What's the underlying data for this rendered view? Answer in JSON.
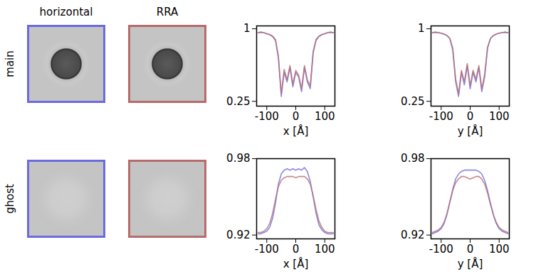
{
  "images": {
    "columns": [
      {
        "title": "horizontal",
        "color": "#6b6be0"
      },
      {
        "title": "RRA",
        "color": "#b86b6b"
      }
    ],
    "rows": [
      "main",
      "ghost"
    ]
  },
  "chart_data": [
    {
      "type": "line",
      "xlabel": "x [Å]",
      "xlim": [
        -135,
        135
      ],
      "xticks": [
        -100,
        0,
        100
      ],
      "ylim": [
        0.2,
        1.03
      ],
      "yticks": [
        0.25,
        1
      ],
      "x": [
        -130,
        -120,
        -110,
        -100,
        -90,
        -80,
        -70,
        -60,
        -50,
        -40,
        -30,
        -20,
        -10,
        0,
        10,
        20,
        30,
        40,
        50,
        60,
        70,
        80,
        90,
        100,
        110,
        120,
        130
      ],
      "series": [
        {
          "name": "horizontal",
          "color": "#6b6be0",
          "values": [
            0.96,
            0.965,
            0.96,
            0.95,
            0.94,
            0.92,
            0.88,
            0.7,
            0.3,
            0.55,
            0.45,
            0.6,
            0.4,
            0.55,
            0.5,
            0.35,
            0.6,
            0.45,
            0.38,
            0.75,
            0.88,
            0.92,
            0.94,
            0.95,
            0.96,
            0.965,
            0.96
          ]
        },
        {
          "name": "RRA",
          "color": "#b86b6b",
          "values": [
            0.96,
            0.965,
            0.96,
            0.95,
            0.94,
            0.925,
            0.89,
            0.72,
            0.33,
            0.58,
            0.47,
            0.62,
            0.43,
            0.57,
            0.52,
            0.38,
            0.62,
            0.47,
            0.41,
            0.77,
            0.89,
            0.925,
            0.94,
            0.95,
            0.96,
            0.965,
            0.96
          ]
        }
      ]
    },
    {
      "type": "line",
      "xlabel": "y [Å]",
      "xlim": [
        -135,
        135
      ],
      "xticks": [
        -100,
        0,
        100
      ],
      "ylim": [
        0.2,
        1.03
      ],
      "yticks": [
        0.25,
        1
      ],
      "x": [
        -130,
        -120,
        -110,
        -100,
        -90,
        -80,
        -70,
        -60,
        -50,
        -40,
        -30,
        -20,
        -10,
        0,
        10,
        20,
        30,
        40,
        50,
        60,
        70,
        80,
        90,
        100,
        110,
        120,
        130
      ],
      "series": [
        {
          "name": "horizontal",
          "color": "#6b6be0",
          "values": [
            0.96,
            0.965,
            0.96,
            0.955,
            0.945,
            0.93,
            0.9,
            0.78,
            0.45,
            0.3,
            0.55,
            0.42,
            0.62,
            0.38,
            0.55,
            0.45,
            0.6,
            0.35,
            0.5,
            0.8,
            0.9,
            0.93,
            0.945,
            0.955,
            0.96,
            0.965,
            0.96
          ]
        },
        {
          "name": "RRA",
          "color": "#b86b6b",
          "values": [
            0.96,
            0.965,
            0.96,
            0.955,
            0.945,
            0.93,
            0.9,
            0.8,
            0.48,
            0.33,
            0.57,
            0.45,
            0.64,
            0.41,
            0.57,
            0.48,
            0.62,
            0.38,
            0.53,
            0.81,
            0.9,
            0.93,
            0.945,
            0.955,
            0.96,
            0.965,
            0.96
          ]
        }
      ]
    },
    {
      "type": "line",
      "xlabel": "x [Å]",
      "xlim": [
        -135,
        135
      ],
      "xticks": [
        -100,
        0,
        100
      ],
      "ylim": [
        0.917,
        0.98
      ],
      "yticks": [
        0.92,
        0.98
      ],
      "x": [
        -130,
        -120,
        -110,
        -100,
        -90,
        -80,
        -70,
        -60,
        -50,
        -40,
        -30,
        -20,
        -10,
        0,
        10,
        20,
        30,
        40,
        50,
        60,
        70,
        80,
        90,
        100,
        110,
        120,
        130
      ],
      "series": [
        {
          "name": "horizontal",
          "color": "#6b6be0",
          "values": [
            0.921,
            0.921,
            0.922,
            0.923,
            0.926,
            0.933,
            0.945,
            0.96,
            0.968,
            0.971,
            0.972,
            0.971,
            0.972,
            0.971,
            0.972,
            0.971,
            0.973,
            0.97,
            0.962,
            0.95,
            0.937,
            0.928,
            0.924,
            0.922,
            0.921,
            0.921,
            0.921
          ]
        },
        {
          "name": "RRA",
          "color": "#b86b6b",
          "values": [
            0.922,
            0.922,
            0.923,
            0.925,
            0.929,
            0.937,
            0.948,
            0.958,
            0.963,
            0.965,
            0.966,
            0.966,
            0.966,
            0.965,
            0.966,
            0.966,
            0.966,
            0.964,
            0.96,
            0.951,
            0.94,
            0.931,
            0.926,
            0.923,
            0.922,
            0.922,
            0.922
          ]
        }
      ]
    },
    {
      "type": "line",
      "xlabel": "y [Å]",
      "xlim": [
        -135,
        135
      ],
      "xticks": [
        -100,
        0,
        100
      ],
      "ylim": [
        0.917,
        0.98
      ],
      "yticks": [
        0.92,
        0.98
      ],
      "x": [
        -130,
        -120,
        -110,
        -100,
        -90,
        -80,
        -70,
        -60,
        -50,
        -40,
        -30,
        -20,
        -10,
        0,
        10,
        20,
        30,
        40,
        50,
        60,
        70,
        80,
        90,
        100,
        110,
        120,
        130
      ],
      "series": [
        {
          "name": "horizontal",
          "color": "#6b6be0",
          "values": [
            0.921,
            0.922,
            0.923,
            0.925,
            0.929,
            0.936,
            0.946,
            0.956,
            0.964,
            0.968,
            0.97,
            0.971,
            0.971,
            0.971,
            0.971,
            0.971,
            0.97,
            0.968,
            0.963,
            0.955,
            0.945,
            0.936,
            0.929,
            0.925,
            0.923,
            0.922,
            0.921
          ]
        },
        {
          "name": "RRA",
          "color": "#b86b6b",
          "values": [
            0.922,
            0.923,
            0.924,
            0.926,
            0.93,
            0.937,
            0.946,
            0.955,
            0.961,
            0.964,
            0.966,
            0.966,
            0.965,
            0.964,
            0.965,
            0.966,
            0.966,
            0.964,
            0.96,
            0.953,
            0.944,
            0.936,
            0.93,
            0.926,
            0.924,
            0.923,
            0.922
          ]
        }
      ]
    }
  ]
}
